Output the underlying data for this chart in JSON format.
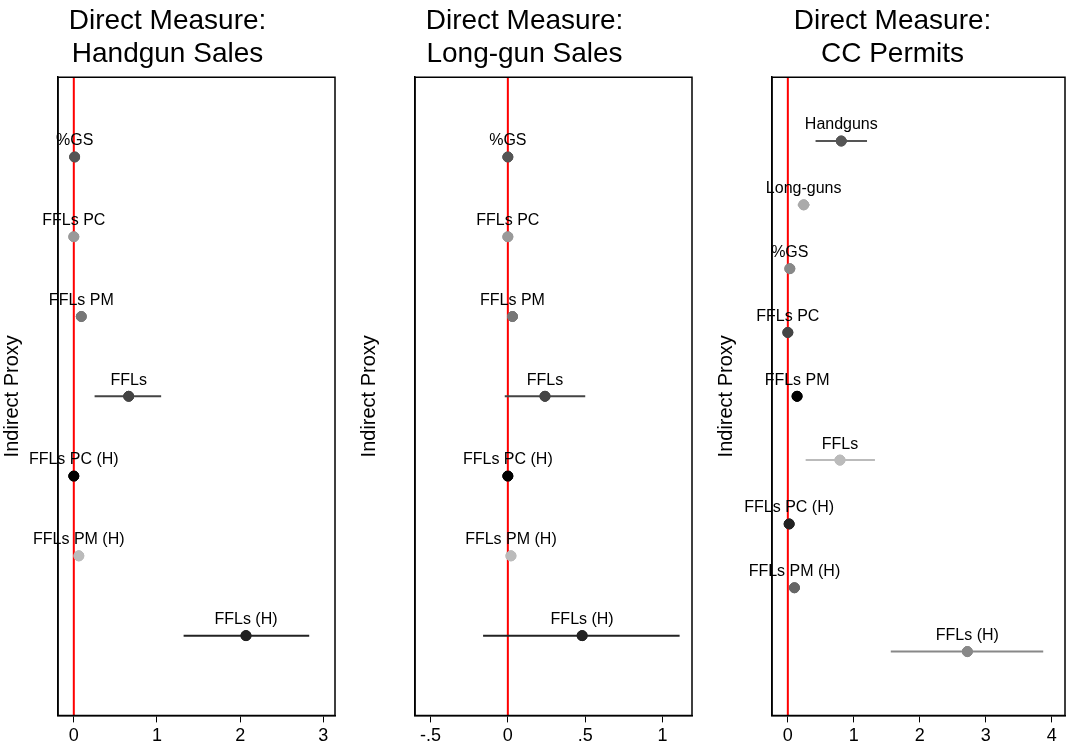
{
  "chart_data": [
    {
      "type": "scatter",
      "orientation": "horizontal",
      "title": "Direct Measure:\nHandgun Sales",
      "ylabel": "Indirect Proxy",
      "categories": [
        "%GS",
        "FFLs PC",
        "FFLs PM",
        "FFLs",
        "FFLs PC (H)",
        "FFLs PM (H)",
        "FFLs (H)"
      ],
      "values": [
        0.01,
        0,
        0.09,
        0.66,
        0,
        0.06,
        2.07
      ],
      "errors": [
        null,
        null,
        null,
        [
          0.25,
          1.05
        ],
        null,
        null,
        [
          1.32,
          2.83
        ]
      ],
      "colors": [
        "#555555",
        "#999999",
        "#777777",
        "#444444",
        "#000000",
        "#bbbbbb",
        "#222222"
      ],
      "xlim": [
        -0.19,
        3.14
      ],
      "xticks": [
        0,
        1,
        2,
        3
      ],
      "tick_labels": "x",
      "grid": false,
      "legend": false,
      "marker": "circle",
      "ref_lines": [
        {
          "axis": "x",
          "value": 0,
          "color": "#ff0000"
        }
      ]
    },
    {
      "type": "scatter",
      "orientation": "horizontal",
      "title": "Direct Measure:\nLong-gun Sales",
      "ylabel": "Indirect Proxy",
      "categories": [
        "%GS",
        "FFLs PC",
        "FFLs PM",
        "FFLs",
        "FFLs PC (H)",
        "FFLs PM (H)",
        "FFLs (H)"
      ],
      "values": [
        0,
        0,
        0.03,
        0.24,
        0,
        0.02,
        0.48
      ],
      "errors": [
        null,
        null,
        null,
        [
          -0.02,
          0.5
        ],
        null,
        null,
        [
          -0.16,
          1.11
        ]
      ],
      "colors": [
        "#555555",
        "#999999",
        "#777777",
        "#444444",
        "#000000",
        "#bbbbbb",
        "#222222"
      ],
      "xlim": [
        -0.6,
        1.19
      ],
      "xticks": [
        {
          "value": -0.5,
          "label": "-.5"
        },
        0,
        {
          "value": 0.5,
          "label": ".5"
        },
        1
      ],
      "tick_labels": "x",
      "grid": false,
      "legend": false,
      "marker": "circle",
      "ref_lines": [
        {
          "axis": "x",
          "value": 0,
          "color": "#ff0000"
        }
      ]
    },
    {
      "type": "scatter",
      "orientation": "horizontal",
      "title": "Direct Measure:\nCC Permits",
      "ylabel": "Indirect Proxy",
      "categories": [
        "Handguns",
        "Long-guns",
        "%GS",
        "FFLs PC",
        "FFLs PM",
        "FFLs",
        "FFLs PC (H)",
        "FFLs PM (H)",
        "FFLs (H)"
      ],
      "values": [
        0.81,
        0.24,
        0.03,
        0,
        0.14,
        0.79,
        0.02,
        0.1,
        2.72
      ],
      "errors": [
        [
          0.42,
          1.2
        ],
        [
          0.15,
          0.33
        ],
        null,
        null,
        null,
        [
          0.27,
          1.32
        ],
        null,
        null,
        [
          1.56,
          3.87
        ]
      ],
      "colors": [
        "#555555",
        "#aaaaaa",
        "#888888",
        "#444444",
        "#000000",
        "#bbbbbb",
        "#222222",
        "#666666",
        "#888888"
      ],
      "xlim": [
        -0.24,
        4.2
      ],
      "xticks": [
        0,
        1,
        2,
        3,
        4
      ],
      "tick_labels": "x",
      "grid": false,
      "legend": false,
      "marker": "circle",
      "ref_lines": [
        {
          "axis": "x",
          "value": 0,
          "color": "#ff0000"
        }
      ]
    }
  ]
}
